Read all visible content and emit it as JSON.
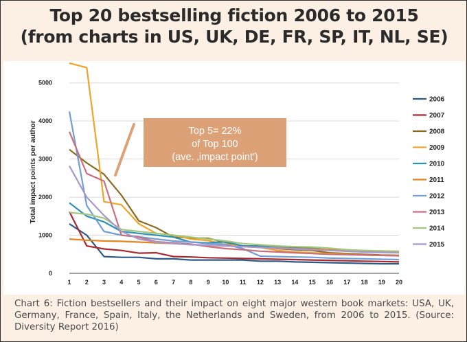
{
  "title_line1": "Top 20 bestselling fiction 2006 to 2015",
  "title_line2": "(from charts in US, UK, DE, FR, SP, IT, NL, SE)",
  "caption": "Chart 6: Fiction bestsellers and their impact on eight major western book markets: USA, UK, Germany, France, Spain, Italy, the Netherlands and Sweden, from 2006 to 2015. (Source: Diversity Report 2016)",
  "chart_data": {
    "type": "line",
    "title": "Top 20 bestselling fiction 2006 to 2015",
    "xlabel": "",
    "ylabel": "Total impact points per author",
    "x": [
      1,
      2,
      3,
      4,
      5,
      6,
      7,
      8,
      9,
      10,
      11,
      12,
      13,
      14,
      15,
      16,
      17,
      18,
      19,
      20
    ],
    "ylim": [
      0,
      5500
    ],
    "yticks": [
      0,
      1000,
      2000,
      3000,
      4000,
      5000
    ],
    "grid": true,
    "legend_position": "right",
    "annotation": {
      "line1": "Top 5= 22%",
      "line2": "of Top 100",
      "line3": "(ave. ‚impact point')",
      "box_color": "#dda178",
      "arrow_color": "#dda178"
    },
    "series": [
      {
        "name": "2006",
        "color": "#2b5a87",
        "values": [
          1300,
          1000,
          440,
          420,
          420,
          380,
          380,
          350,
          350,
          350,
          350,
          320,
          320,
          300,
          290,
          280,
          270,
          260,
          250,
          250
        ]
      },
      {
        "name": "2007",
        "color": "#a8282e",
        "values": [
          1620,
          720,
          640,
          600,
          530,
          540,
          440,
          430,
          410,
          400,
          390,
          380,
          370,
          360,
          350,
          340,
          330,
          320,
          310,
          300
        ]
      },
      {
        "name": "2008",
        "color": "#8a6a1e",
        "values": [
          3250,
          2900,
          2600,
          2050,
          1380,
          1200,
          950,
          930,
          920,
          810,
          720,
          700,
          650,
          620,
          600,
          540,
          520,
          500,
          480,
          470
        ]
      },
      {
        "name": "2009",
        "color": "#f1a42a",
        "values": [
          5520,
          5400,
          1880,
          1800,
          1300,
          1050,
          1000,
          900,
          860,
          760,
          720,
          680,
          600,
          560,
          540,
          520,
          500,
          480,
          470,
          460
        ]
      },
      {
        "name": "2010",
        "color": "#2a93b6",
        "values": [
          1850,
          1500,
          1350,
          1100,
          1050,
          1000,
          950,
          820,
          800,
          830,
          720,
          720,
          700,
          680,
          670,
          600,
          580,
          560,
          550,
          550
        ]
      },
      {
        "name": "2011",
        "color": "#e58420",
        "values": [
          900,
          870,
          850,
          840,
          820,
          800,
          780,
          760,
          730,
          720,
          700,
          680,
          670,
          650,
          640,
          620,
          600,
          590,
          580,
          570
        ]
      },
      {
        "name": "2012",
        "color": "#6f9fd5",
        "values": [
          4250,
          1780,
          1100,
          1000,
          960,
          900,
          850,
          820,
          780,
          760,
          650,
          450,
          440,
          430,
          420,
          400,
          390,
          380,
          370,
          360
        ]
      },
      {
        "name": "2013",
        "color": "#c96e7c",
        "values": [
          3720,
          2620,
          2420,
          1000,
          950,
          830,
          800,
          770,
          700,
          650,
          620,
          580,
          560,
          540,
          520,
          500,
          490,
          480,
          470,
          460
        ]
      },
      {
        "name": "2014",
        "color": "#a4c77b",
        "values": [
          1600,
          1550,
          1450,
          1150,
          1100,
          1050,
          1000,
          950,
          900,
          850,
          780,
          750,
          720,
          700,
          690,
          660,
          620,
          600,
          590,
          580
        ]
      },
      {
        "name": "2015",
        "color": "#a797ce",
        "values": [
          2820,
          2000,
          1520,
          1100,
          900,
          820,
          780,
          750,
          740,
          720,
          700,
          680,
          660,
          640,
          620,
          600,
          580,
          560,
          550,
          540
        ]
      }
    ]
  }
}
